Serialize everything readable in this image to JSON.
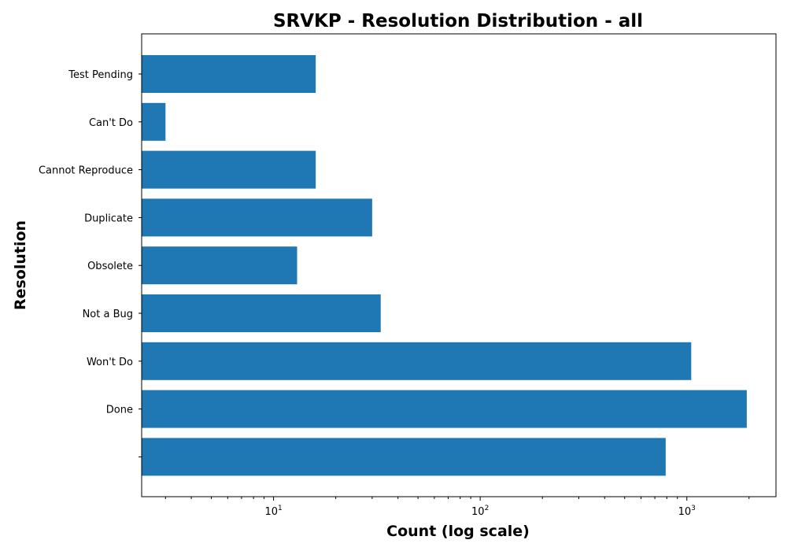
{
  "chart_data": {
    "type": "bar",
    "orientation": "horizontal",
    "title": "SRVKP - Resolution Distribution - all",
    "xlabel": "Count (log scale)",
    "ylabel": "Resolution",
    "x_scale": "log",
    "xlim": [
      2.3,
      2700
    ],
    "x_ticks": [
      {
        "value": 10,
        "base": "10",
        "exp": "1"
      },
      {
        "value": 100,
        "base": "10",
        "exp": "2"
      },
      {
        "value": 1000,
        "base": "10",
        "exp": "3"
      }
    ],
    "categories": [
      "Test Pending",
      "Can't Do",
      "Cannot Reproduce",
      "Duplicate",
      "Obsolete",
      "Not a Bug",
      "Won't Do",
      "Done",
      ""
    ],
    "values": [
      16,
      3,
      16,
      30,
      13,
      33,
      1050,
      1950,
      790
    ],
    "bar_color": "#1f77b4",
    "grid": false
  }
}
